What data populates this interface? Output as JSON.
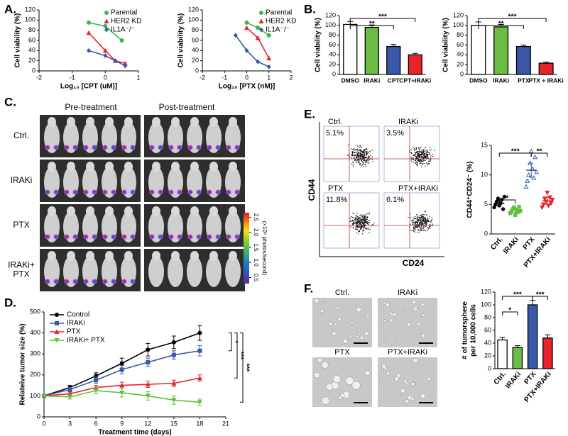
{
  "panels": [
    "A.",
    "B.",
    "C.",
    "D.",
    "E.",
    "F."
  ],
  "mouse_imaging": {
    "columns": [
      "Pre-treatment",
      "Post-treatment"
    ],
    "rows": [
      [
        "Ctrl."
      ],
      [
        "IRAKi"
      ],
      [
        "PTX"
      ],
      [
        "IRAKi+",
        "PTX"
      ]
    ],
    "colorbar": {
      "label": "(×10⁵ photos/second)",
      "clim": [
        0.3,
        2.65
      ],
      "ticks": [
        0.5,
        {
          "value": 1,
          "label": "1.0"
        },
        1.5,
        {
          "value": 2,
          "label": "2.0"
        },
        2.5
      ]
    }
  },
  "flow": {
    "xlabel": "CD24",
    "ylabel": "CD44",
    "plots": [
      {
        "label": "Ctrl.",
        "percent": "5.1%"
      },
      {
        "label": "IRAKi",
        "percent": "3.5%"
      },
      {
        "label": "PTX",
        "percent": "11.8%"
      },
      {
        "label": "PTX+IRAKi",
        "percent": "6.1%"
      }
    ]
  },
  "sphere_images": {
    "labels": [
      "Ctrl.",
      "IRAKi",
      "PTX",
      "PTX+IRAKi"
    ]
  },
  "chart_data": [
    {
      "type": "line",
      "xlabel": "Log₁₀ [CPT (uM)]",
      "ylabel": "Cell viability (%)",
      "xlim": [
        -2,
        1
      ],
      "xticks": [
        -2,
        -1,
        0,
        1
      ],
      "ylim": [
        0,
        120
      ],
      "yticks": [
        0,
        20,
        40,
        60,
        80,
        100,
        120
      ],
      "legend": "upper right",
      "series": [
        {
          "name": "Parental",
          "color": "#3cb44b",
          "marker": "circle",
          "x": [
            -0.5,
            0,
            0.5
          ],
          "values": [
            95,
            88,
            60
          ]
        },
        {
          "name": "HER2 KD",
          "color": "#e8232a",
          "marker": "triangle",
          "x": [
            -0.5,
            0,
            0.3,
            0.6
          ],
          "values": [
            75,
            40,
            20,
            15
          ]
        },
        {
          "name": "IL1A⁻/⁻",
          "color": "#3a58a8",
          "marker": "diamond",
          "x": [
            -0.5,
            0,
            0.3,
            0.6
          ],
          "values": [
            40,
            30,
            20,
            10
          ]
        }
      ]
    },
    {
      "type": "line",
      "xlabel": "Log₁₀ [PTX (nM)]",
      "ylabel": "Cell viability (%)",
      "xlim": [
        -2,
        2
      ],
      "xticks": [
        -2,
        -1,
        0,
        1,
        2
      ],
      "ylim": [
        0,
        120
      ],
      "yticks": [
        0,
        20,
        40,
        60,
        80,
        100,
        120
      ],
      "legend": "upper right",
      "series": [
        {
          "name": "Parental",
          "color": "#3cb44b",
          "marker": "circle",
          "x": [
            0,
            0.5,
            1
          ],
          "values": [
            95,
            85,
            70
          ]
        },
        {
          "name": "HER2 KD",
          "color": "#e8232a",
          "marker": "triangle",
          "x": [
            0,
            0.5,
            1
          ],
          "values": [
            85,
            65,
            25
          ]
        },
        {
          "name": "IL1A⁻/⁻",
          "color": "#3a58a8",
          "marker": "diamond",
          "x": [
            -0.5,
            0,
            0.5,
            1
          ],
          "values": [
            70,
            40,
            18,
            8
          ]
        }
      ]
    },
    {
      "type": "bar",
      "ylabel": "Cell viability (%)",
      "categories": [
        "DMSO",
        "IRAKi",
        "CPT",
        "CPT+IRAKi"
      ],
      "values": [
        102,
        96,
        57,
        40
      ],
      "errors": [
        6,
        5,
        4,
        3
      ],
      "colors": [
        "#ffffff",
        "#6cbd45",
        "#3a58a8",
        "#e8232a"
      ],
      "ylim": [
        0,
        120
      ],
      "yticks": [
        0,
        20,
        40,
        60,
        80,
        100,
        120
      ],
      "annotations": [
        "**",
        "***"
      ]
    },
    {
      "type": "bar",
      "ylabel": "Cell viability (%)",
      "categories": [
        "DMSO",
        "IRAKi",
        "PTX",
        "PTX + IRAKi"
      ],
      "values": [
        100,
        97,
        57,
        23
      ],
      "errors": [
        7,
        5,
        3,
        2
      ],
      "colors": [
        "#ffffff",
        "#6cbd45",
        "#3a58a8",
        "#e8232a"
      ],
      "ylim": [
        0,
        120
      ],
      "yticks": [
        0,
        20,
        40,
        60,
        80,
        100,
        120
      ],
      "annotations": [
        "**",
        "***"
      ]
    },
    {
      "type": "line",
      "xlabel": "Treatment time (days)",
      "ylabel": "Relateive tumor size (%)",
      "x": [
        0,
        3,
        6,
        9,
        12,
        15,
        18
      ],
      "xlim": [
        0,
        21
      ],
      "xticks": [
        0,
        3,
        6,
        9,
        12,
        15,
        18,
        21
      ],
      "ylim": [
        0,
        500
      ],
      "yticks": [
        0,
        100,
        200,
        300,
        400,
        500
      ],
      "legend": "upper left",
      "annotations": [
        "*",
        "***",
        "***"
      ],
      "series": [
        {
          "name": "Control",
          "color": "#000000",
          "marker": "circle",
          "values": [
            100,
            140,
            195,
            255,
            320,
            355,
            400
          ],
          "errors": [
            5,
            10,
            15,
            25,
            30,
            30,
            35
          ]
        },
        {
          "name": "IRAKi",
          "color": "#3a58a8",
          "marker": "square",
          "values": [
            100,
            130,
            175,
            225,
            260,
            295,
            315
          ],
          "errors": [
            5,
            10,
            15,
            20,
            20,
            20,
            25
          ]
        },
        {
          "name": "PTX",
          "color": "#e8232a",
          "marker": "triangle",
          "values": [
            100,
            110,
            140,
            150,
            155,
            160,
            185
          ],
          "errors": [
            5,
            8,
            10,
            15,
            15,
            15,
            15
          ]
        },
        {
          "name": "IRAKi+ PTX",
          "color": "#5cc33c",
          "marker": "triangle-down",
          "values": [
            100,
            95,
            125,
            115,
            100,
            80,
            70
          ],
          "errors": [
            5,
            10,
            15,
            20,
            20,
            20,
            15
          ]
        }
      ]
    },
    {
      "type": "dot",
      "ylabel": "CD44⁺CD24⁻ (%)",
      "categories": [
        "Ctrl.",
        "IRAKi",
        "PTX",
        "PTX+IRAKi"
      ],
      "values": [
        5.2,
        4,
        10.8,
        5.6
      ],
      "errors": [
        0.5,
        0.4,
        1.2,
        0.6
      ],
      "points": [
        [
          4.5,
          5,
          5.5,
          6,
          4.8,
          5.2,
          5.8,
          4.2,
          6.3
        ],
        [
          3.5,
          3.8,
          4.2,
          4.5,
          3.2,
          4,
          3.7,
          4.6,
          3.9
        ],
        [
          8,
          9,
          10,
          12,
          14,
          11,
          9.5,
          13,
          10.5
        ],
        [
          4.5,
          5,
          6,
          5.5,
          7,
          4.8,
          6.2,
          5.2,
          5.8
        ]
      ],
      "colors": [
        "#000000",
        "#5cc33c",
        "#3a58a8",
        "#e8232a"
      ],
      "ylim": [
        0,
        15
      ],
      "yticks": [
        0,
        5,
        10,
        15
      ],
      "annotations": [
        "***",
        "**",
        "*"
      ]
    },
    {
      "type": "bar",
      "ylabel": [
        "# of tumorsphere",
        "per 10,000 cells"
      ],
      "categories": [
        "Ctrl.",
        "IRAKi",
        "PTX",
        "PTX+IRAKi"
      ],
      "values": [
        45,
        33,
        100,
        48
      ],
      "errors": [
        4,
        3,
        7,
        5
      ],
      "colors": [
        "#ffffff",
        "#6cbd45",
        "#3a58a8",
        "#e8232a"
      ],
      "ylim": [
        0,
        120
      ],
      "yticks": [
        0,
        20,
        40,
        60,
        80,
        100,
        120
      ],
      "annotations": [
        "***",
        "*",
        "***"
      ]
    }
  ]
}
